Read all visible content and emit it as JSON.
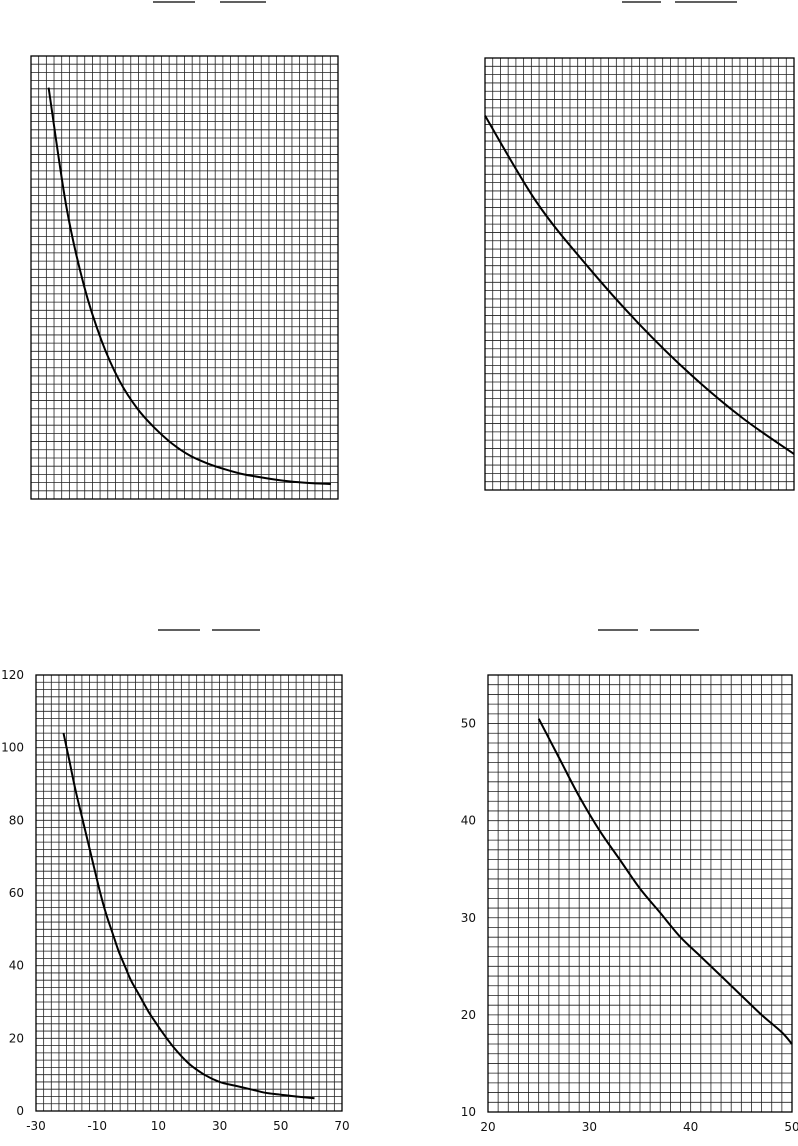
{
  "chart_data": [
    {
      "type": "line",
      "title": "",
      "xlabel": "",
      "ylabel": "",
      "grid": true,
      "series": [
        {
          "x": [
            -20,
            -15,
            -10,
            -5,
            0,
            5,
            10,
            15,
            20,
            25,
            30,
            35,
            40,
            45,
            50,
            55,
            60
          ],
          "values": [
            104,
            74,
            54,
            40,
            30,
            23,
            18,
            14,
            11,
            9,
            7.5,
            6.3,
            5.5,
            4.8,
            4.3,
            4,
            3.8
          ]
        }
      ]
    },
    {
      "type": "line",
      "title": "",
      "xlabel": "",
      "ylabel": "",
      "grid": true,
      "series": [
        {
          "x": [
            20,
            25,
            30,
            35,
            40,
            45,
            50
          ],
          "values": [
            51,
            45,
            40.5,
            36.5,
            33,
            30,
            27.5
          ]
        }
      ]
    },
    {
      "type": "line",
      "title": "",
      "xlabel": "",
      "ylabel": "",
      "grid": true,
      "xlim": [
        -30,
        70
      ],
      "ylim": [
        0,
        120
      ],
      "xticks": [
        "-30",
        "-10",
        "10",
        "30",
        "50",
        "70"
      ],
      "yticks": [
        "0",
        "20",
        "40",
        "60",
        "80",
        "100",
        "120"
      ],
      "series": [
        {
          "x": [
            -21,
            -19,
            -17,
            -15,
            -13,
            -11,
            -9,
            -7,
            -5,
            -3,
            -1,
            1,
            3,
            5,
            7,
            9,
            11,
            15,
            20,
            25,
            30,
            35,
            40,
            45,
            50,
            55,
            61
          ],
          "values": [
            104,
            96,
            88,
            81,
            74,
            67,
            60,
            54,
            49,
            44,
            40,
            36,
            33,
            30,
            27,
            24.5,
            22,
            17.5,
            13,
            10,
            8,
            7,
            6,
            5,
            4.5,
            4,
            3.5
          ]
        }
      ]
    },
    {
      "type": "line",
      "title": "",
      "xlabel": "",
      "ylabel": "",
      "grid": true,
      "xlim": [
        20,
        50
      ],
      "ylim": [
        10,
        55
      ],
      "xticks": [
        "20",
        "30",
        "40",
        "50"
      ],
      "yticks": [
        "10",
        "20",
        "30",
        "40",
        "50"
      ],
      "series": [
        {
          "x": [
            25,
            27,
            29,
            31,
            33,
            35,
            37,
            39,
            41,
            43,
            45,
            47,
            49,
            50
          ],
          "values": [
            50.5,
            46.5,
            42.5,
            39,
            36,
            33,
            30.5,
            28,
            26,
            24,
            22,
            20,
            18.2,
            17
          ]
        }
      ]
    }
  ]
}
